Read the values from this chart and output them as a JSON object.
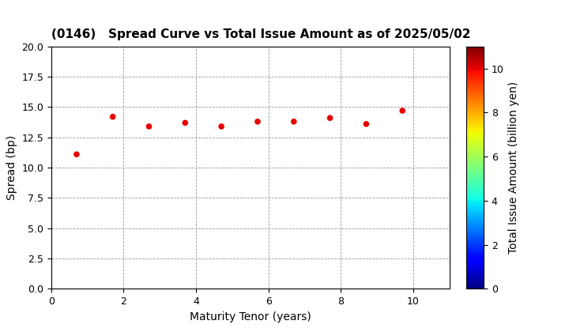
{
  "title": "(0146)   Spread Curve vs Total Issue Amount as of 2025/05/02",
  "xlabel": "Maturity Tenor (years)",
  "ylabel": "Spread (bp)",
  "colorbar_label": "Total Issue Amount (billion yen)",
  "xlim": [
    0,
    11
  ],
  "ylim": [
    0.0,
    20.0
  ],
  "xticks": [
    0,
    2,
    4,
    6,
    8,
    10
  ],
  "yticks": [
    0.0,
    2.5,
    5.0,
    7.5,
    10.0,
    12.5,
    15.0,
    17.5,
    20.0
  ],
  "colorbar_ticks": [
    0,
    2,
    4,
    6,
    8,
    10
  ],
  "scatter_x": [
    0.7,
    1.7,
    2.7,
    3.7,
    4.7,
    5.7,
    6.7,
    7.7,
    8.7,
    9.7
  ],
  "scatter_y": [
    11.1,
    14.2,
    13.4,
    13.7,
    13.4,
    13.8,
    13.8,
    14.1,
    13.6,
    14.7
  ],
  "scatter_c": [
    10.0,
    10.0,
    10.0,
    10.0,
    10.0,
    10.0,
    10.0,
    10.0,
    10.0,
    10.0
  ],
  "cmap": "jet",
  "vmin": 0,
  "vmax": 11,
  "marker_size": 20,
  "background_color": "#ffffff",
  "grid_color": "#999999",
  "grid_style": "--",
  "title_fontsize": 11,
  "axis_fontsize": 10,
  "tick_fontsize": 9
}
